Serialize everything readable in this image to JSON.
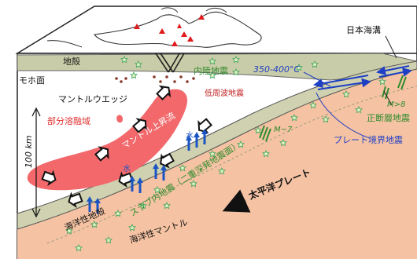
{
  "labels": {
    "crust": "地殻",
    "moho": "モホ面",
    "mantle_wedge": "マントルウエッジ",
    "partial_melt": "部分溶融域",
    "mantle_upwelling": "マントル上昇流",
    "inland_eq": "内陸地震",
    "low_freq_eq": "低周波地震",
    "water_1": "水",
    "water_2": "水",
    "depth_scale": "100 km",
    "oceanic_crust": "海洋性地殻",
    "slab_eq": "スラブ内地震（二重深発地震面）",
    "oceanic_mantle": "海洋性マントル",
    "pacific_plate": "太平洋プレート",
    "japan_trench": "日本海溝",
    "temp_350_400": "350-400°C",
    "m_gt_8": "M>8",
    "normal_fault_eq": "正断層地震",
    "m_7": "M~7",
    "plate_boundary_eq": "プレート境界地震"
  },
  "colors": {
    "crust": "#c9cca8",
    "crust_band": "#bfc4a0",
    "mantle_wedge": "#ffffff",
    "partial_melt": "#f2686b",
    "slab_crust": "#cfd1b0",
    "slab_mantle": "#f5c3a3",
    "inland_text": "#2e8b2e",
    "water_arrow": "#1b55c4",
    "plate_boundary": "#1f3fc4",
    "volcano": "#e01b1b",
    "star_fill": "#e9f5c8",
    "star_stroke": "#3aa35a"
  }
}
